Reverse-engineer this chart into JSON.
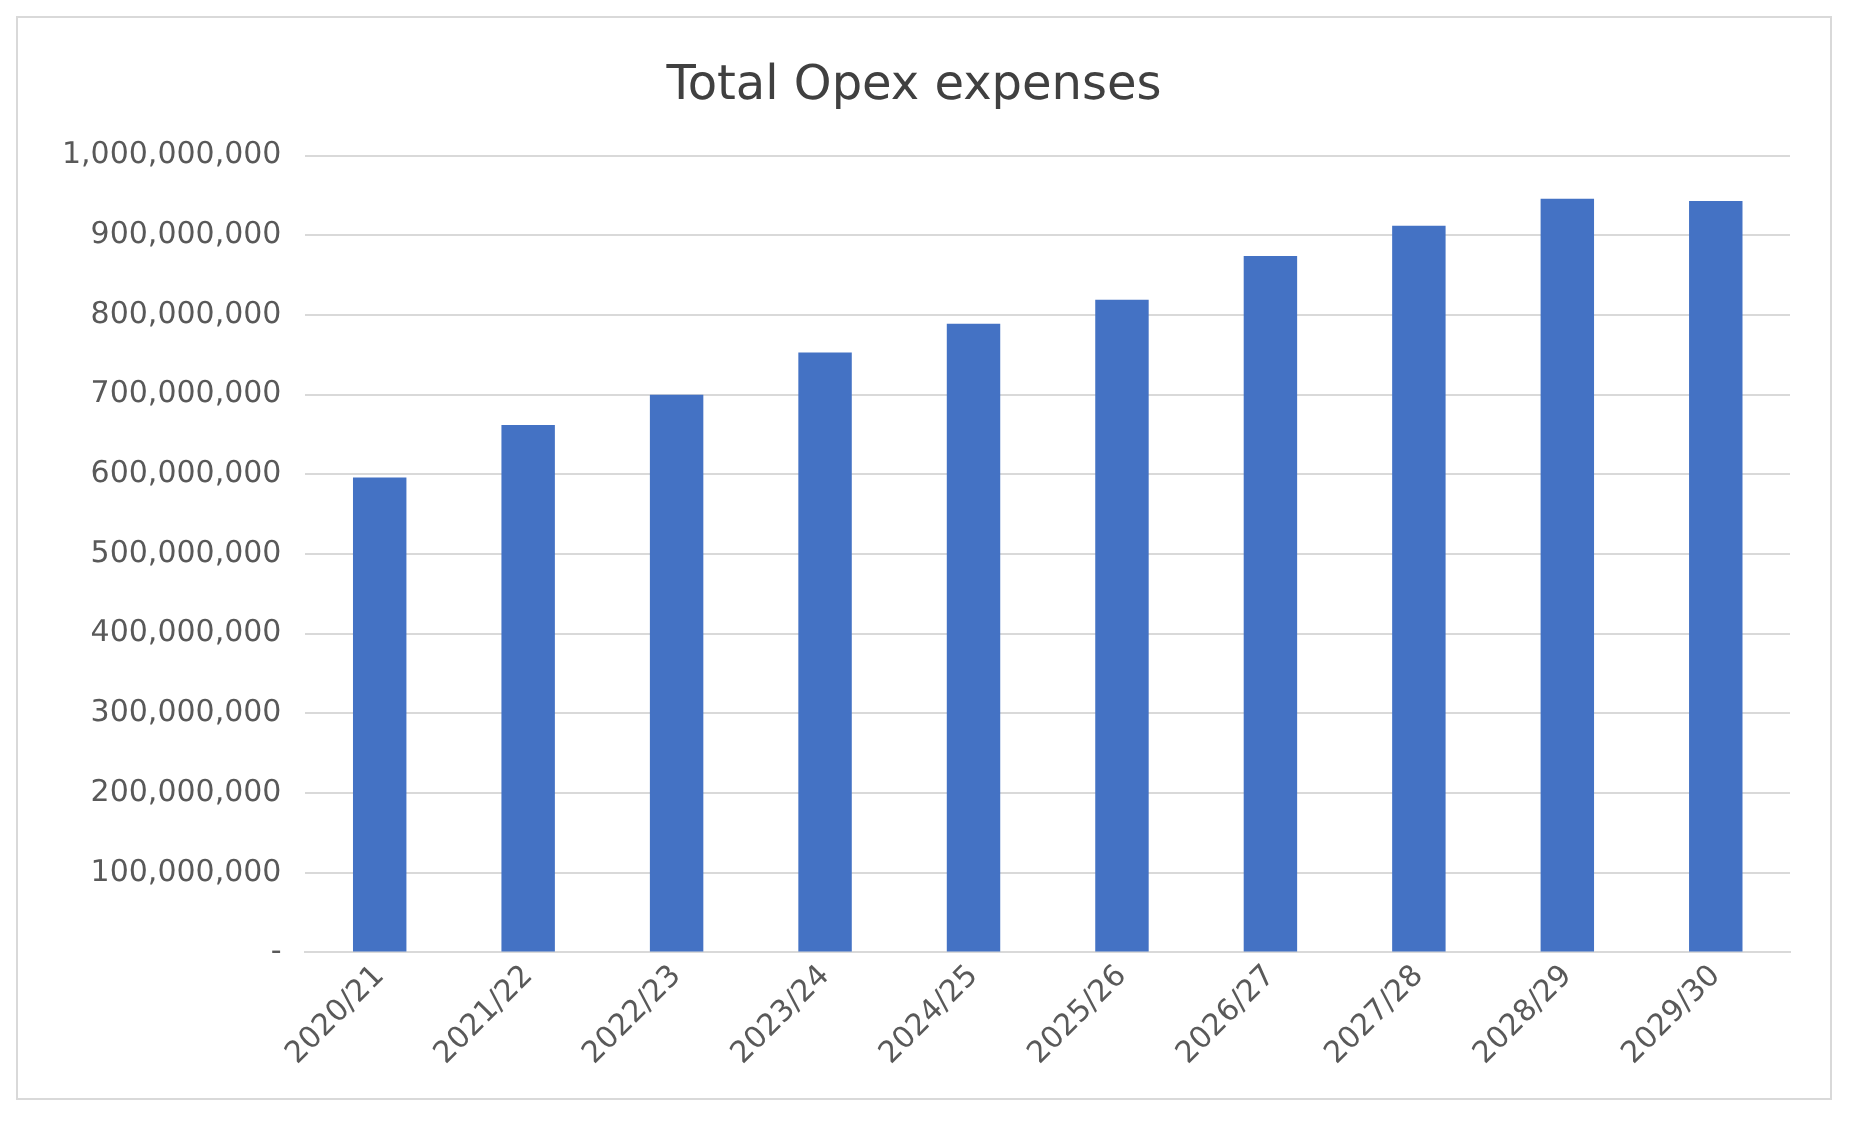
{
  "chart_data": {
    "type": "bar",
    "title": "Total Opex expenses",
    "categories": [
      "2020/21",
      "2021/22",
      "2022/23",
      "2023/24",
      "2024/25",
      "2025/26",
      "2026/27",
      "2027/28",
      "2028/29",
      "2029/30"
    ],
    "values": [
      596000000,
      662000000,
      700000000,
      753000000,
      789000000,
      819000000,
      874000000,
      912000000,
      946000000,
      943000000
    ],
    "color": "#4472c4",
    "ylim": [
      0,
      1000000000
    ],
    "yticks": [
      {
        "value": 0,
        "label": "-"
      },
      {
        "value": 100000000,
        "label": "100,000,000"
      },
      {
        "value": 200000000,
        "label": "200,000,000"
      },
      {
        "value": 300000000,
        "label": "300,000,000"
      },
      {
        "value": 400000000,
        "label": "400,000,000"
      },
      {
        "value": 500000000,
        "label": "500,000,000"
      },
      {
        "value": 600000000,
        "label": "600,000,000"
      },
      {
        "value": 700000000,
        "label": "700,000,000"
      },
      {
        "value": 800000000,
        "label": "800,000,000"
      },
      {
        "value": 900000000,
        "label": "900,000,000"
      },
      {
        "value": 1000000000,
        "label": "1,000,000,000"
      }
    ],
    "grid": "y",
    "legend": false
  }
}
